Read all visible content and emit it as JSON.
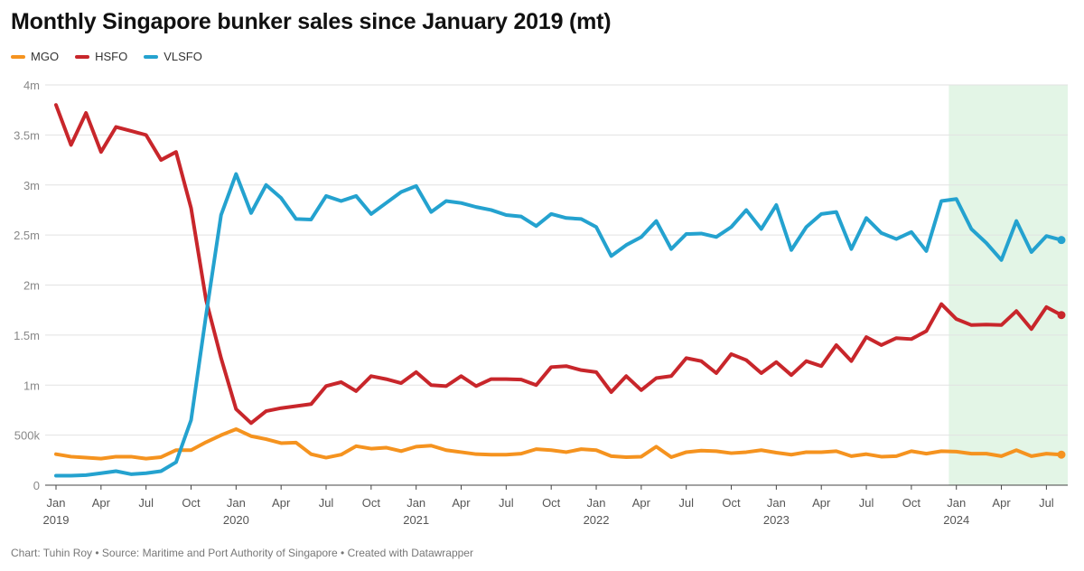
{
  "title": "Monthly Singapore bunker sales since January 2019 (mt)",
  "footer": "Chart: Tuhin Roy • Source: Maritime and Port Authority of Singapore • Created with Datawrapper",
  "legend": [
    {
      "label": "MGO",
      "color": "#f5931f"
    },
    {
      "label": "HSFO",
      "color": "#c8262b"
    },
    {
      "label": "VLSFO",
      "color": "#24a2cf"
    }
  ],
  "chart_data": {
    "type": "line",
    "x_start": "2019-01",
    "x_end": "2024-08",
    "x_unit": "month",
    "ylim": [
      0,
      4000000
    ],
    "y_ticks": [
      {
        "value": 0,
        "label": "0"
      },
      {
        "value": 500000,
        "label": "500k"
      },
      {
        "value": 1000000,
        "label": "1m"
      },
      {
        "value": 1500000,
        "label": "1.5m"
      },
      {
        "value": 2000000,
        "label": "2m"
      },
      {
        "value": 2500000,
        "label": "2.5m"
      },
      {
        "value": 3000000,
        "label": "3m"
      },
      {
        "value": 3500000,
        "label": "3.5m"
      },
      {
        "value": 4000000,
        "label": "4m"
      }
    ],
    "x_ticks": [
      {
        "index": 0,
        "label": "Jan",
        "year": "2019"
      },
      {
        "index": 3,
        "label": "Apr",
        "year": ""
      },
      {
        "index": 6,
        "label": "Jul",
        "year": ""
      },
      {
        "index": 9,
        "label": "Oct",
        "year": ""
      },
      {
        "index": 12,
        "label": "Jan",
        "year": "2020"
      },
      {
        "index": 15,
        "label": "Apr",
        "year": ""
      },
      {
        "index": 18,
        "label": "Jul",
        "year": ""
      },
      {
        "index": 21,
        "label": "Oct",
        "year": ""
      },
      {
        "index": 24,
        "label": "Jan",
        "year": "2021"
      },
      {
        "index": 27,
        "label": "Apr",
        "year": ""
      },
      {
        "index": 30,
        "label": "Jul",
        "year": ""
      },
      {
        "index": 33,
        "label": "Oct",
        "year": ""
      },
      {
        "index": 36,
        "label": "Jan",
        "year": "2022"
      },
      {
        "index": 39,
        "label": "Apr",
        "year": ""
      },
      {
        "index": 42,
        "label": "Jul",
        "year": ""
      },
      {
        "index": 45,
        "label": "Oct",
        "year": ""
      },
      {
        "index": 48,
        "label": "Jan",
        "year": "2023"
      },
      {
        "index": 51,
        "label": "Apr",
        "year": ""
      },
      {
        "index": 54,
        "label": "Jul",
        "year": ""
      },
      {
        "index": 57,
        "label": "Oct",
        "year": ""
      },
      {
        "index": 60,
        "label": "Jan",
        "year": "2024"
      },
      {
        "index": 63,
        "label": "Apr",
        "year": ""
      },
      {
        "index": 66,
        "label": "Jul",
        "year": ""
      }
    ],
    "highlight_range": [
      "2024-01",
      "2024-08"
    ],
    "highlight_color": "#e3f5e6",
    "grid": true,
    "legend_position": "top-left",
    "series": [
      {
        "name": "MGO",
        "color": "#f5931f",
        "values": [
          310000,
          285000,
          275000,
          265000,
          285000,
          285000,
          265000,
          280000,
          350000,
          350000,
          430000,
          500000,
          560000,
          490000,
          460000,
          420000,
          425000,
          310000,
          275000,
          305000,
          390000,
          365000,
          375000,
          340000,
          385000,
          395000,
          350000,
          330000,
          310000,
          305000,
          305000,
          315000,
          360000,
          350000,
          330000,
          360000,
          350000,
          290000,
          280000,
          285000,
          385000,
          280000,
          330000,
          345000,
          340000,
          320000,
          330000,
          350000,
          325000,
          305000,
          330000,
          330000,
          340000,
          290000,
          310000,
          285000,
          290000,
          340000,
          315000,
          340000,
          335000,
          315000,
          315000,
          290000,
          350000,
          290000,
          315000,
          305000
        ]
      },
      {
        "name": "HSFO",
        "color": "#c8262b",
        "values": [
          3800000,
          3400000,
          3720000,
          3330000,
          3580000,
          3540000,
          3500000,
          3250000,
          3330000,
          2770000,
          1850000,
          1270000,
          760000,
          620000,
          740000,
          770000,
          790000,
          810000,
          990000,
          1030000,
          940000,
          1090000,
          1060000,
          1020000,
          1130000,
          1000000,
          990000,
          1090000,
          990000,
          1060000,
          1060000,
          1055000,
          1000000,
          1180000,
          1190000,
          1150000,
          1130000,
          930000,
          1090000,
          950000,
          1070000,
          1090000,
          1270000,
          1240000,
          1120000,
          1310000,
          1250000,
          1120000,
          1230000,
          1100000,
          1240000,
          1190000,
          1400000,
          1240000,
          1480000,
          1400000,
          1470000,
          1460000,
          1540000,
          1810000,
          1660000,
          1600000,
          1605000,
          1600000,
          1740000,
          1560000,
          1780000,
          1700000
        ]
      },
      {
        "name": "VLSFO",
        "color": "#24a2cf",
        "values": [
          95000,
          95000,
          100000,
          120000,
          140000,
          110000,
          120000,
          140000,
          230000,
          650000,
          1700000,
          2700000,
          3110000,
          2720000,
          3000000,
          2870000,
          2660000,
          2655000,
          2890000,
          2840000,
          2890000,
          2710000,
          2820000,
          2930000,
          2990000,
          2730000,
          2840000,
          2820000,
          2780000,
          2750000,
          2700000,
          2685000,
          2590000,
          2710000,
          2670000,
          2660000,
          2580000,
          2290000,
          2400000,
          2480000,
          2640000,
          2360000,
          2510000,
          2515000,
          2480000,
          2580000,
          2750000,
          2560000,
          2800000,
          2350000,
          2580000,
          2710000,
          2730000,
          2360000,
          2670000,
          2520000,
          2460000,
          2530000,
          2340000,
          2840000,
          2860000,
          2560000,
          2420000,
          2250000,
          2640000,
          2330000,
          2490000,
          2450000
        ]
      }
    ]
  }
}
